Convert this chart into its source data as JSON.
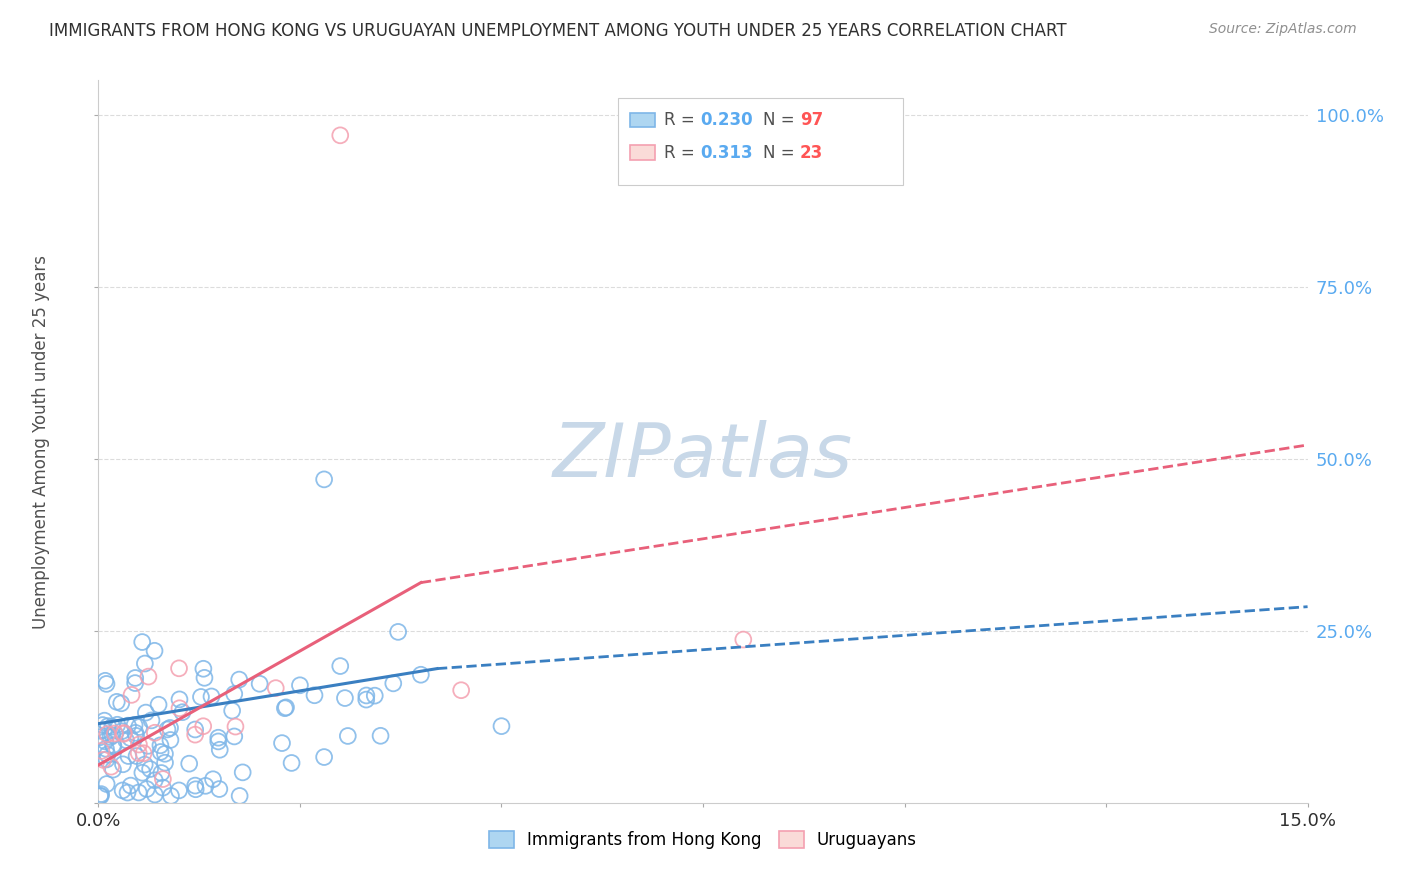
{
  "title": "IMMIGRANTS FROM HONG KONG VS URUGUAYAN UNEMPLOYMENT AMONG YOUTH UNDER 25 YEARS CORRELATION CHART",
  "source": "Source: ZipAtlas.com",
  "ylabel": "Unemployment Among Youth under 25 years",
  "xlim": [
    0.0,
    0.15
  ],
  "ylim": [
    0.0,
    1.05
  ],
  "blue_color": "#7EB6E8",
  "pink_color": "#F4A0B0",
  "trend_blue_color": "#3A7FC1",
  "trend_pink_color": "#E8607A",
  "watermark": "ZIPatlas",
  "watermark_color": "#C8D8E8",
  "grid_color": "#DCDCDC",
  "bg_color": "#FFFFFF",
  "title_color": "#303030",
  "right_tick_color": "#5AAAF0",
  "legend_N_color": "#FF5555",
  "legend_R_color": "#5AAAF0",
  "legend_text_color": "#505050"
}
